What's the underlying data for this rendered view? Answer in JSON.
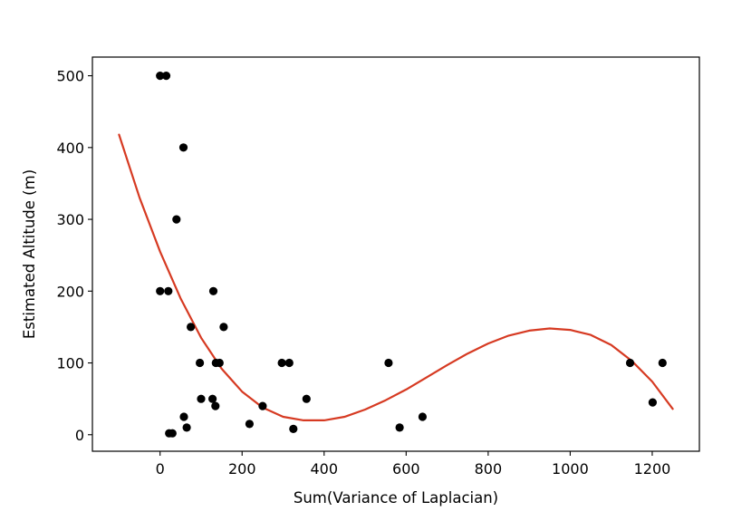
{
  "chart_data": {
    "type": "scatter",
    "xlabel": "Sum(Variance of Laplacian)",
    "ylabel": "Estimated Altitude (m)",
    "xlim": [
      -165,
      1315
    ],
    "ylim": [
      -23,
      526
    ],
    "x_ticks": [
      0,
      200,
      400,
      600,
      800,
      1000,
      1200
    ],
    "y_ticks": [
      0,
      100,
      200,
      300,
      400,
      500
    ],
    "grid": false,
    "legend": "none",
    "colors": {
      "points": "#000000",
      "fit": "#d63a22",
      "axes": "#000000"
    },
    "series": [
      {
        "kind": "scatter",
        "points": [
          {
            "x": 0,
            "y": 500
          },
          {
            "x": 15,
            "y": 500
          },
          {
            "x": 57,
            "y": 400
          },
          {
            "x": 40,
            "y": 300
          },
          {
            "x": 0,
            "y": 200
          },
          {
            "x": 20,
            "y": 200
          },
          {
            "x": 130,
            "y": 200
          },
          {
            "x": 75,
            "y": 150
          },
          {
            "x": 155,
            "y": 150
          },
          {
            "x": 97,
            "y": 100
          },
          {
            "x": 136,
            "y": 100
          },
          {
            "x": 145,
            "y": 100
          },
          {
            "x": 297,
            "y": 100
          },
          {
            "x": 315,
            "y": 100
          },
          {
            "x": 557,
            "y": 100
          },
          {
            "x": 1146,
            "y": 100
          },
          {
            "x": 1225,
            "y": 100
          },
          {
            "x": 100,
            "y": 50
          },
          {
            "x": 128,
            "y": 50
          },
          {
            "x": 357,
            "y": 50
          },
          {
            "x": 1201,
            "y": 45
          },
          {
            "x": 135,
            "y": 40
          },
          {
            "x": 250,
            "y": 40
          },
          {
            "x": 58,
            "y": 25
          },
          {
            "x": 640,
            "y": 25
          },
          {
            "x": 218,
            "y": 15
          },
          {
            "x": 65,
            "y": 10
          },
          {
            "x": 325,
            "y": 8
          },
          {
            "x": 584,
            "y": 10
          },
          {
            "x": 22,
            "y": 2
          },
          {
            "x": 30,
            "y": 2
          }
        ]
      },
      {
        "kind": "line",
        "points": [
          {
            "x": -100,
            "y": 418
          },
          {
            "x": -50,
            "y": 330
          },
          {
            "x": 0,
            "y": 255
          },
          {
            "x": 50,
            "y": 190
          },
          {
            "x": 100,
            "y": 135
          },
          {
            "x": 150,
            "y": 92
          },
          {
            "x": 200,
            "y": 60
          },
          {
            "x": 250,
            "y": 38
          },
          {
            "x": 300,
            "y": 25
          },
          {
            "x": 350,
            "y": 20
          },
          {
            "x": 400,
            "y": 20
          },
          {
            "x": 450,
            "y": 25
          },
          {
            "x": 500,
            "y": 35
          },
          {
            "x": 550,
            "y": 48
          },
          {
            "x": 600,
            "y": 63
          },
          {
            "x": 650,
            "y": 80
          },
          {
            "x": 700,
            "y": 97
          },
          {
            "x": 750,
            "y": 113
          },
          {
            "x": 800,
            "y": 127
          },
          {
            "x": 850,
            "y": 138
          },
          {
            "x": 900,
            "y": 145
          },
          {
            "x": 950,
            "y": 148
          },
          {
            "x": 1000,
            "y": 146
          },
          {
            "x": 1050,
            "y": 139
          },
          {
            "x": 1100,
            "y": 125
          },
          {
            "x": 1150,
            "y": 103
          },
          {
            "x": 1200,
            "y": 74
          },
          {
            "x": 1250,
            "y": 36
          }
        ]
      }
    ]
  }
}
